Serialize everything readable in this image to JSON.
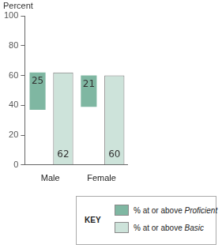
{
  "chart_data": {
    "type": "bar",
    "y_label": "Percent",
    "categories": [
      "Male",
      "Female"
    ],
    "series": [
      {
        "name": "% at or above Proficient",
        "color": "#7fb7a2",
        "values": [
          25,
          21
        ]
      },
      {
        "name": "% at or above Basic",
        "color": "#cde3da",
        "values": [
          62,
          60
        ]
      }
    ],
    "ylim": [
      0,
      100
    ],
    "yticks": [
      0,
      20,
      40,
      60,
      80,
      100
    ],
    "grid": false,
    "data_labels": true,
    "legend": "bottom right",
    "legend_title": "KEY"
  }
}
